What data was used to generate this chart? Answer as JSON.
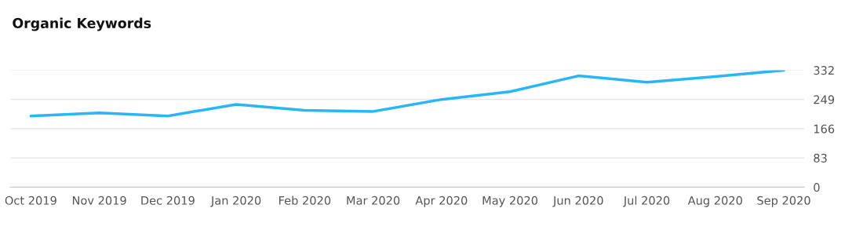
{
  "chart_data": {
    "type": "line",
    "title": "Organic Keywords",
    "categories": [
      "Oct 2019",
      "Nov 2019",
      "Dec 2019",
      "Jan 2020",
      "Feb 2020",
      "Mar 2020",
      "Apr 2020",
      "May 2020",
      "Jun 2020",
      "Jul 2020",
      "Aug 2020",
      "Sep 2020"
    ],
    "series": [
      {
        "color": "#29b6f6",
        "values": [
          202,
          211,
          202,
          235,
          218,
          215,
          249,
          271,
          316,
          298,
          314,
          332
        ]
      }
    ],
    "ylim": [
      0,
      332
    ],
    "yticks": [
      0,
      83,
      166,
      249,
      332
    ],
    "grid": "y",
    "legend": false,
    "marker": "none",
    "line_style": "solid"
  }
}
